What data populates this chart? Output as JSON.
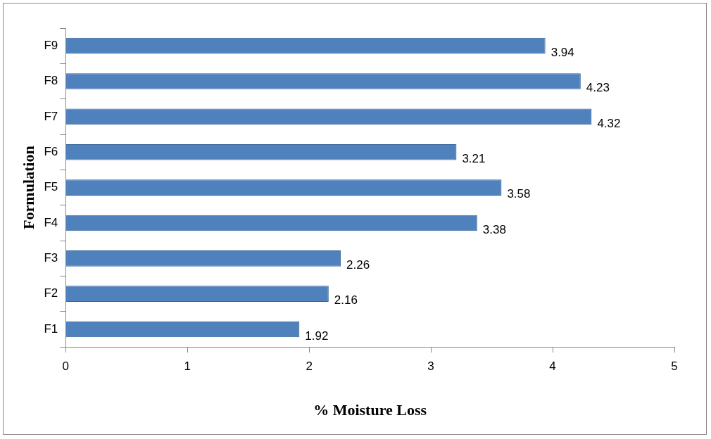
{
  "chart_data": {
    "type": "bar",
    "orientation": "horizontal",
    "xlabel": "% Moisture Loss",
    "ylabel": "Formulation",
    "categories": [
      "F9",
      "F8",
      "F7",
      "F6",
      "F5",
      "F4",
      "F3",
      "F2",
      "F1"
    ],
    "values": [
      3.94,
      4.23,
      4.32,
      3.21,
      3.58,
      3.38,
      2.26,
      2.16,
      1.92
    ],
    "color": "#4f81bd",
    "xlim": [
      0,
      5
    ],
    "xticks": [
      0,
      1,
      2,
      3,
      4,
      5
    ],
    "grid": false,
    "legend": false,
    "data_labels": true
  }
}
